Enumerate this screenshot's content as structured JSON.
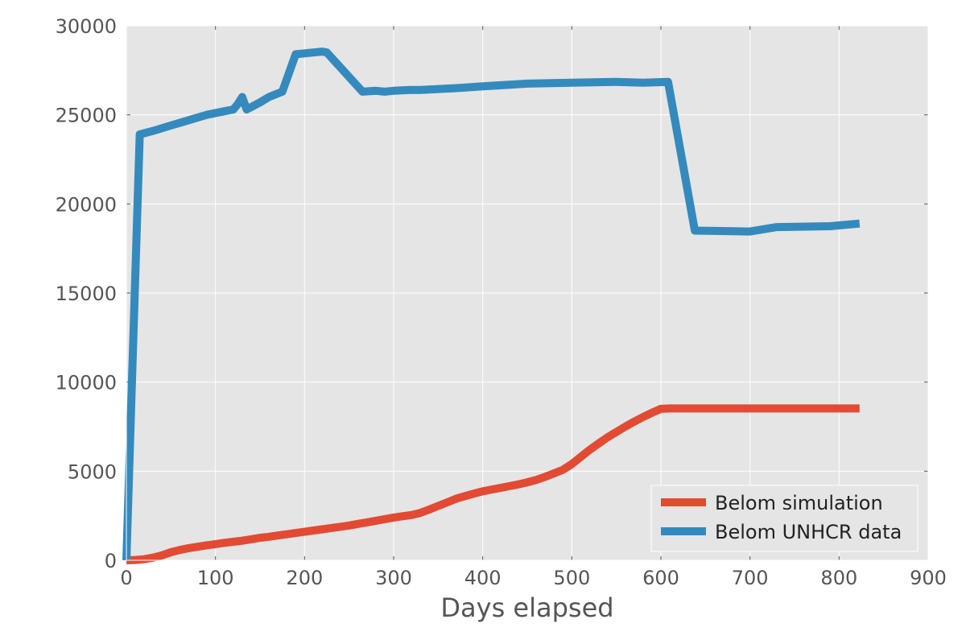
{
  "chart_data": {
    "type": "line",
    "title": "",
    "xlabel": "Days elapsed",
    "ylabel": "",
    "xlim": [
      0,
      900
    ],
    "ylim": [
      0,
      30000
    ],
    "x_ticks": [
      0,
      100,
      200,
      300,
      400,
      500,
      600,
      700,
      800,
      900
    ],
    "y_ticks": [
      0,
      5000,
      10000,
      15000,
      20000,
      25000,
      30000
    ],
    "grid": true,
    "legend_position": "lower-right",
    "series": [
      {
        "name": "Belom simulation",
        "color": "#e24a33",
        "x": [
          0,
          10,
          20,
          30,
          40,
          50,
          60,
          70,
          80,
          90,
          100,
          110,
          120,
          130,
          140,
          150,
          160,
          170,
          180,
          190,
          200,
          210,
          220,
          230,
          240,
          250,
          260,
          270,
          280,
          290,
          300,
          310,
          320,
          330,
          340,
          350,
          360,
          370,
          380,
          390,
          400,
          410,
          420,
          430,
          440,
          450,
          460,
          470,
          480,
          490,
          500,
          510,
          520,
          530,
          540,
          550,
          560,
          570,
          580,
          590,
          600,
          610,
          620,
          700,
          800,
          823
        ],
        "y": [
          0,
          20,
          60,
          150,
          280,
          450,
          580,
          680,
          760,
          840,
          910,
          980,
          1040,
          1100,
          1180,
          1260,
          1320,
          1390,
          1460,
          1530,
          1600,
          1670,
          1740,
          1810,
          1880,
          1950,
          2040,
          2130,
          2220,
          2310,
          2400,
          2470,
          2540,
          2660,
          2850,
          3050,
          3250,
          3450,
          3600,
          3740,
          3870,
          3970,
          4060,
          4160,
          4260,
          4380,
          4510,
          4680,
          4880,
          5080,
          5400,
          5800,
          6200,
          6550,
          6900,
          7200,
          7500,
          7780,
          8040,
          8280,
          8500,
          8520,
          8520,
          8520,
          8520,
          8520
        ]
      },
      {
        "name": "Belom UNHCR data",
        "color": "#348abd",
        "x": [
          0,
          5,
          15,
          30,
          50,
          70,
          90,
          110,
          120,
          125,
          130,
          135,
          150,
          160,
          175,
          190,
          200,
          210,
          220,
          225,
          245,
          265,
          280,
          290,
          300,
          320,
          330,
          350,
          370,
          400,
          450,
          500,
          550,
          580,
          608,
          638,
          700,
          730,
          790,
          823
        ],
        "y": [
          0,
          8000,
          23900,
          24100,
          24400,
          24700,
          25000,
          25200,
          25300,
          25600,
          26000,
          25300,
          25700,
          26000,
          26300,
          28400,
          28450,
          28500,
          28550,
          28500,
          27400,
          26300,
          26350,
          26300,
          26350,
          26400,
          26400,
          26450,
          26500,
          26600,
          26750,
          26800,
          26850,
          26800,
          26850,
          18500,
          18450,
          18700,
          18750,
          18900
        ]
      }
    ]
  }
}
